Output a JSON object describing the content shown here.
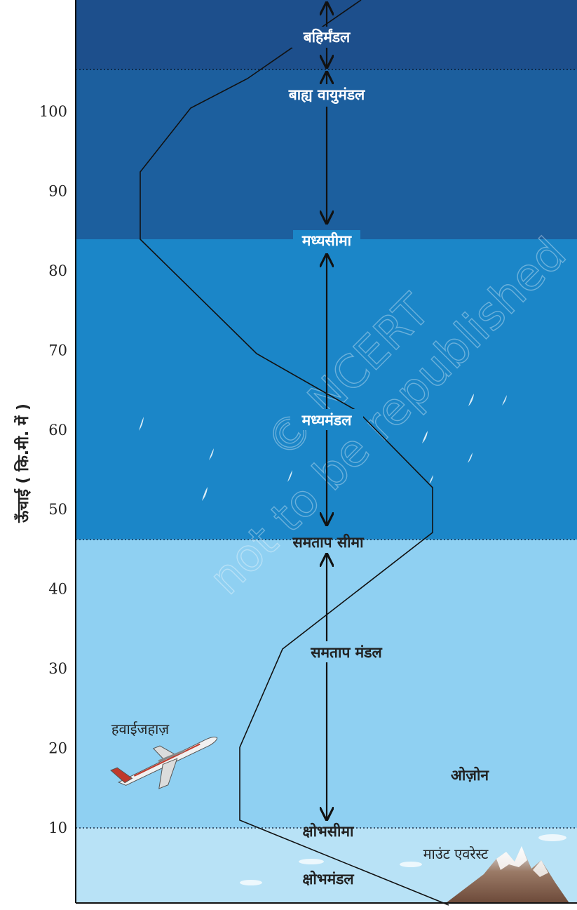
{
  "axis": {
    "title": "ऊँचाई ( कि.मी. में )",
    "ticks": [
      "10",
      "20",
      "30",
      "40",
      "50",
      "60",
      "70",
      "80",
      "90",
      "100"
    ]
  },
  "layers": {
    "exosphere": "बहिर्मंडल",
    "thermosphere": "बाह्य वायुमंडल",
    "mesopause": "मध्यसीमा",
    "mesosphere": "मध्यमंडल",
    "stratopause": "समताप सीमा",
    "stratosphere": "समताप मंडल",
    "tropopause": "क्षोभसीमा",
    "troposphere": "क्षोभमंडल"
  },
  "objects": {
    "aeroplane": "हवाईजहाज़",
    "ozone": "ओज़ोन",
    "everest": "माउंट एवरेस्ट"
  },
  "watermark": {
    "line1": "© NCERT",
    "line2": "not to be republished"
  },
  "colors": {
    "exosphere": "#1d4f8c",
    "thermosphere": "#1c5f9e",
    "mesosphere": "#1b86c8",
    "stratosphere": "#8fd0f2",
    "troposphere": "#b8e2f6"
  }
}
